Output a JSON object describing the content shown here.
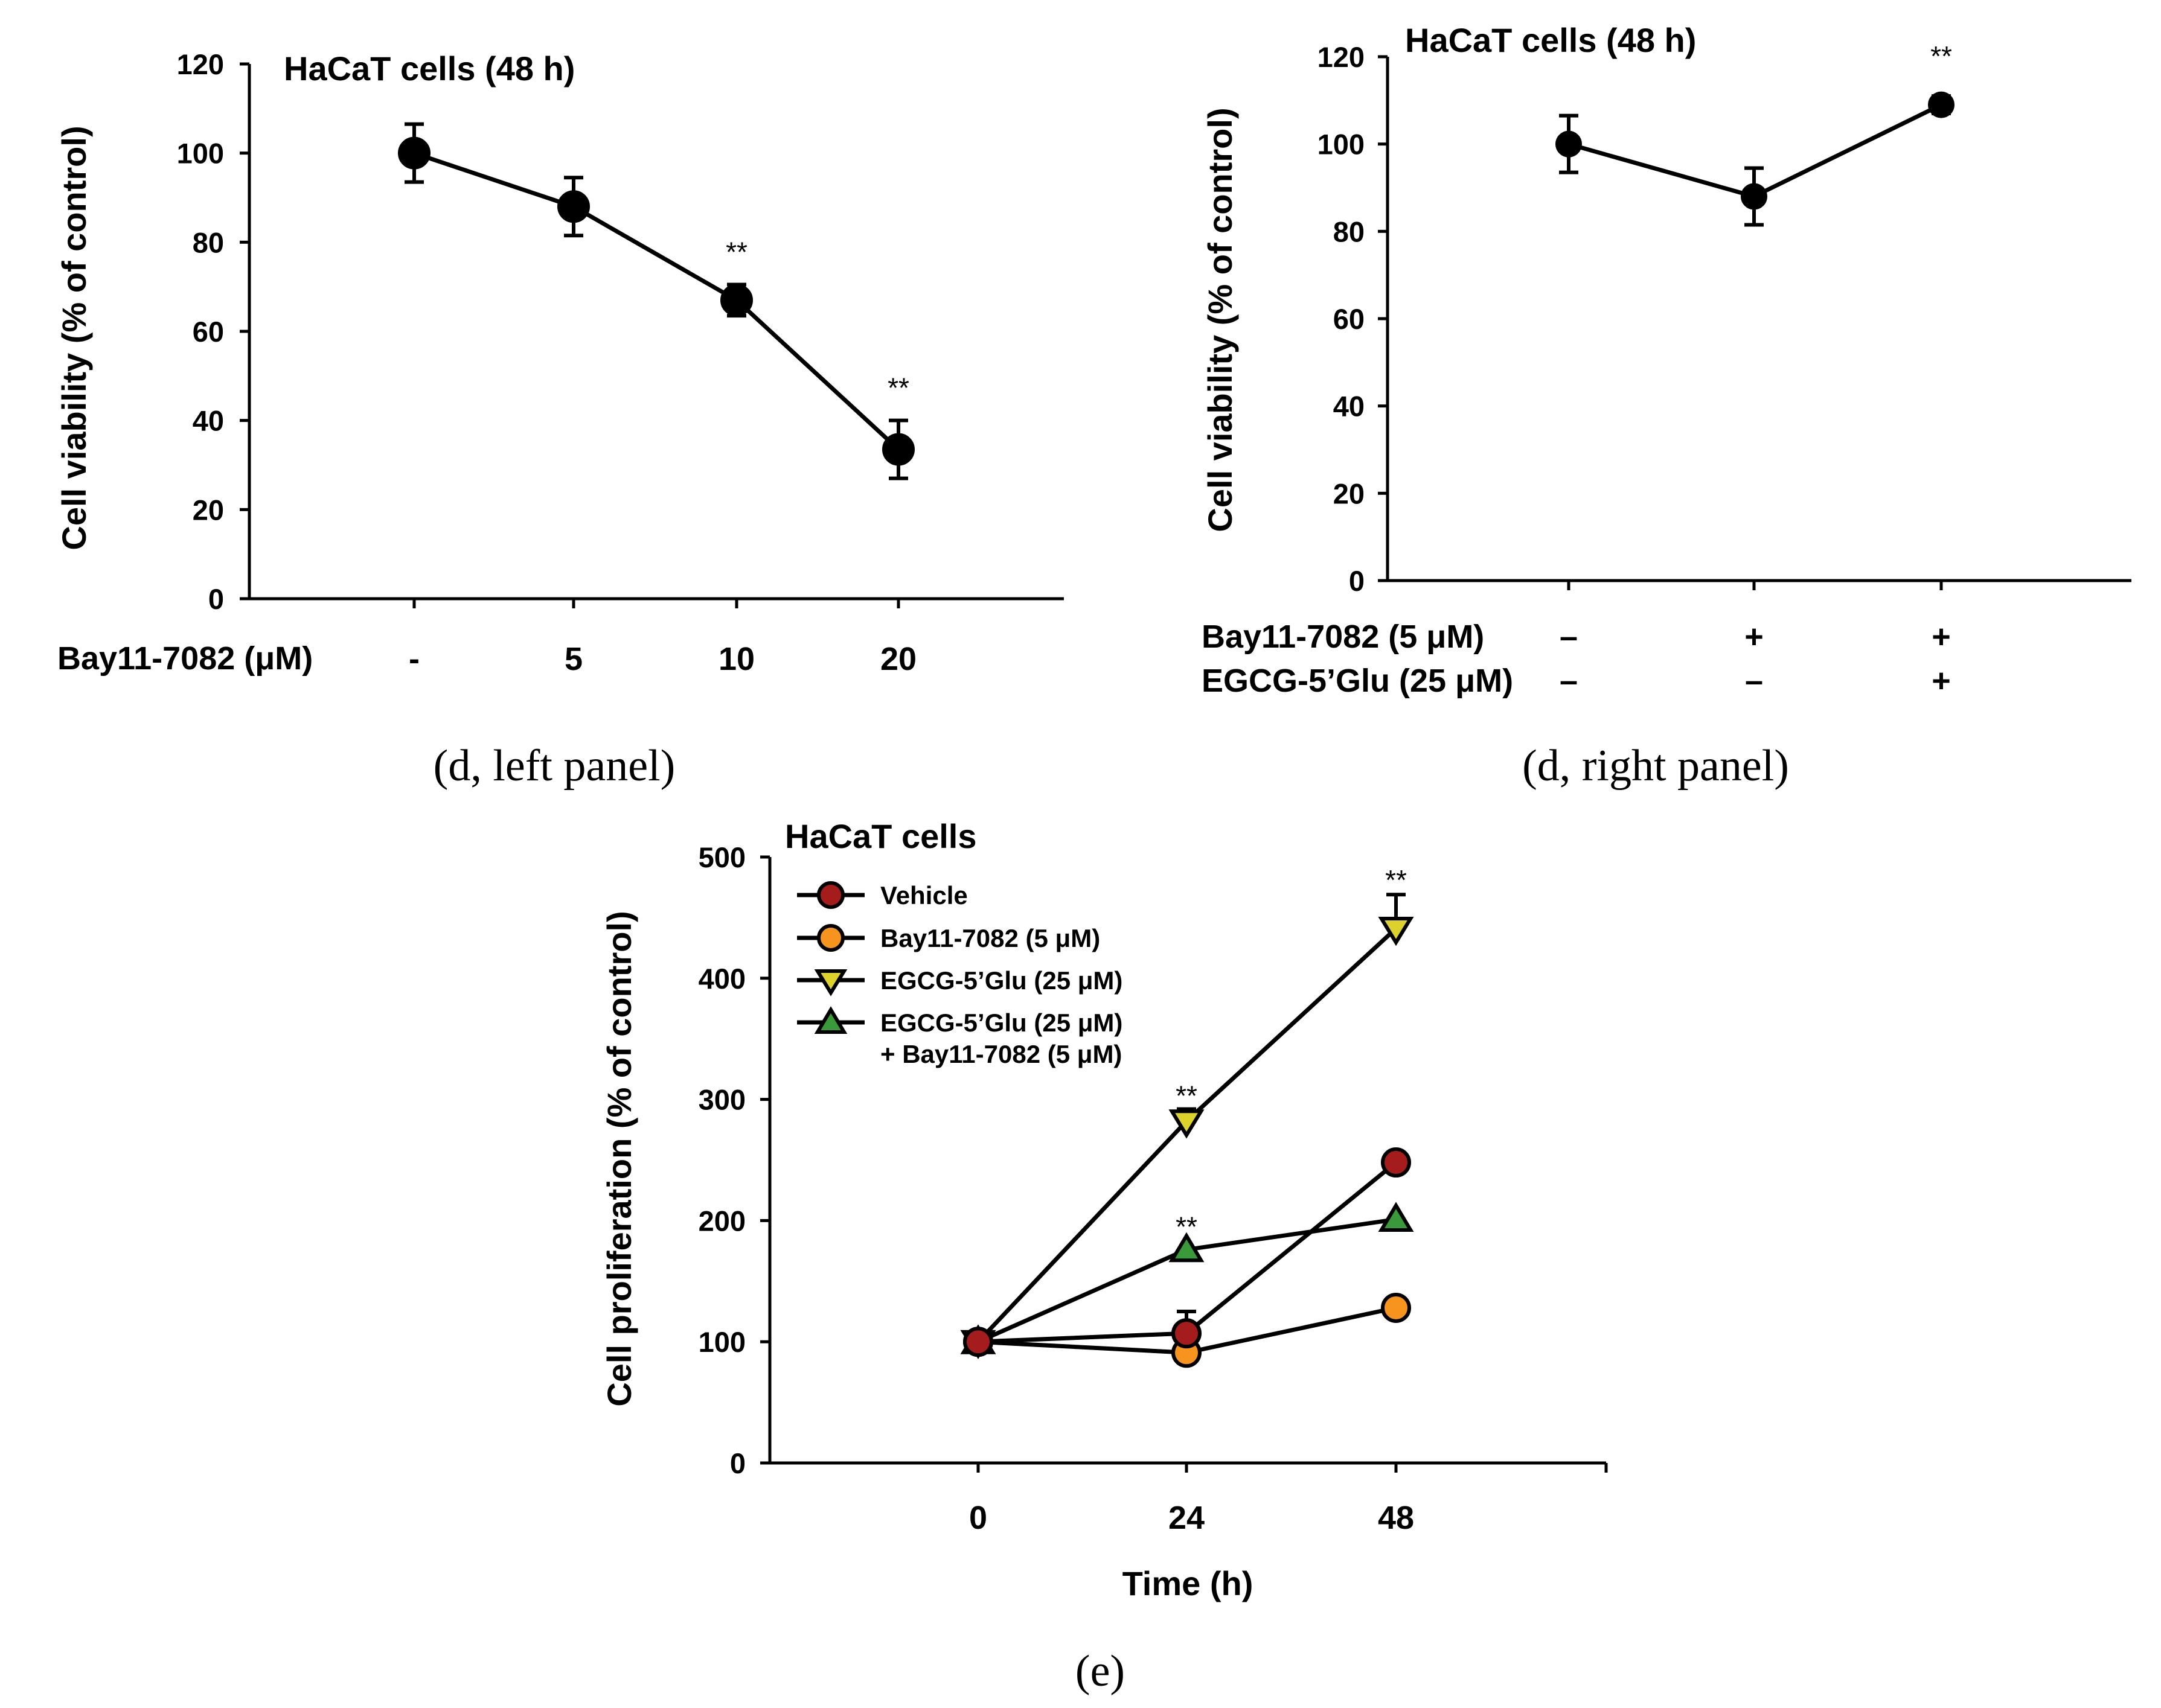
{
  "chart_data": [
    {
      "type": "line",
      "title": "HaCaT cells (48 h)",
      "caption": "(d, left panel)",
      "ylabel": "Cell viability (% of control)",
      "ylim": [
        0,
        120
      ],
      "yticks": [
        0,
        20,
        40,
        60,
        80,
        100,
        120
      ],
      "row_labels": [
        "Bay11-7082 (μM)"
      ],
      "categories": [
        "-",
        "5",
        "10",
        "20"
      ],
      "series": [
        {
          "values": [
            100,
            88,
            67,
            33.5
          ],
          "errors": [
            6.5,
            6.5,
            3.5,
            6.5
          ],
          "color": "#000000",
          "marker": "circle"
        }
      ],
      "significance": [
        "",
        "",
        "**",
        "**"
      ]
    },
    {
      "type": "line",
      "title": "HaCaT cells (48 h)",
      "caption": "(d, right panel)",
      "ylabel": "Cell viability (% of control)",
      "ylim": [
        0,
        120
      ],
      "yticks": [
        0,
        20,
        40,
        60,
        80,
        100,
        120
      ],
      "row_labels": [
        "Bay11-7082 (5 μM)",
        "EGCG-5’Glu (25 μM)"
      ],
      "rows": [
        [
          "–",
          "+",
          "+"
        ],
        [
          "–",
          "–",
          "+"
        ]
      ],
      "series": [
        {
          "values": [
            100,
            88,
            109
          ],
          "errors": [
            6.5,
            6.5,
            2
          ],
          "color": "#000000",
          "marker": "circle"
        }
      ],
      "significance": [
        "",
        "",
        "**"
      ]
    },
    {
      "type": "line",
      "title": "HaCaT cells",
      "caption": "(e)",
      "xlabel": "Time (h)",
      "ylabel": "Cell proliferation (% of control)",
      "ylim": [
        0,
        500
      ],
      "yticks": [
        0,
        100,
        200,
        300,
        400,
        500
      ],
      "x": [
        0,
        24,
        48
      ],
      "x_tick_labels": [
        "0",
        "24",
        "48"
      ],
      "legend_position": "top-left",
      "series": [
        {
          "name": "Vehicle",
          "values": [
            100,
            107,
            248
          ],
          "errors": [
            0,
            18,
            0
          ],
          "color": "#a51c1c",
          "marker": "circle"
        },
        {
          "name": "Bay11-7082 (5 μM)",
          "values": [
            100,
            91,
            128
          ],
          "errors": [
            0,
            0,
            0
          ],
          "color": "#f7941d",
          "marker": "circle"
        },
        {
          "name": "EGCG-5’Glu (25 μM)",
          "values": [
            100,
            282,
            441
          ],
          "errors": [
            0,
            10,
            28
          ],
          "color": "#dcd22b",
          "marker": "triangle-down"
        },
        {
          "name": "EGCG-5’Glu (25 μM)",
          "name_line2": "+ Bay11-7082 (5 μM)",
          "values": [
            100,
            176,
            201
          ],
          "errors": [
            0,
            0,
            0
          ],
          "color": "#3a9a3a",
          "marker": "triangle-up"
        }
      ],
      "significance": [
        {
          "x": 24,
          "y": 300,
          "text": "**"
        },
        {
          "x": 24,
          "y": 192,
          "text": "**"
        },
        {
          "x": 48,
          "y": 478,
          "text": "**"
        }
      ]
    }
  ]
}
